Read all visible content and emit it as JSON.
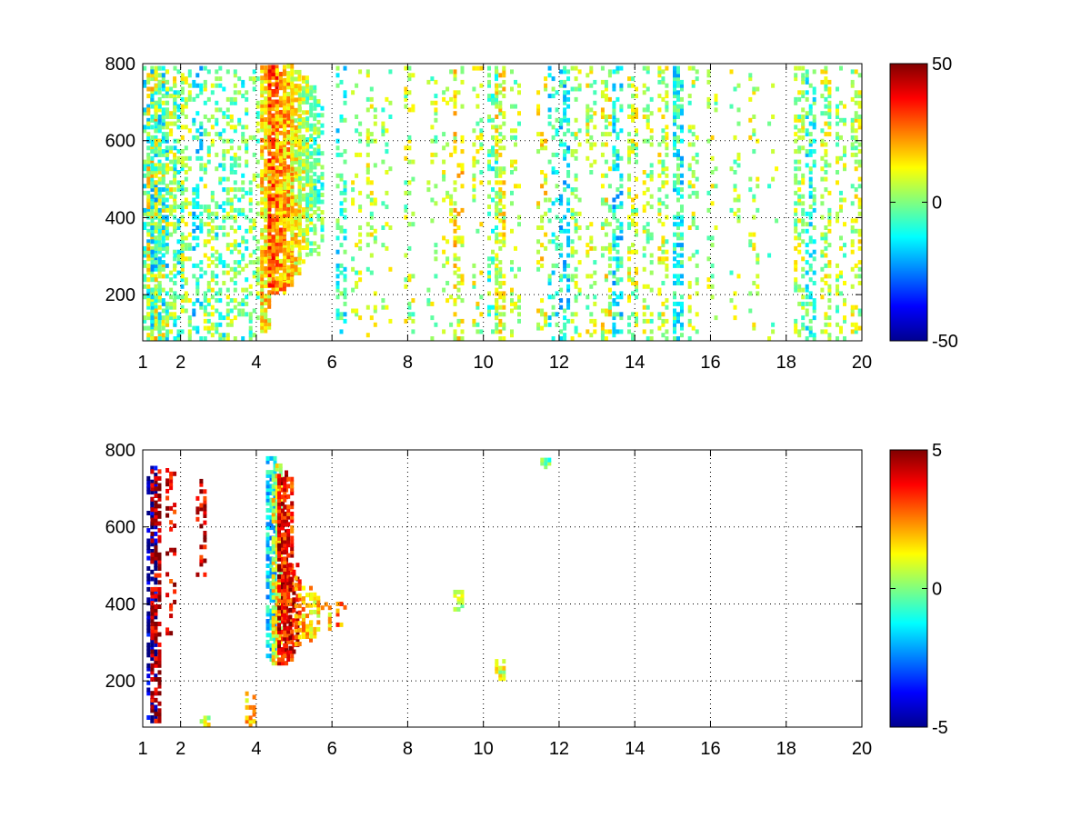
{
  "chart_data": [
    {
      "type": "heatmap",
      "title": "",
      "xlabel": "",
      "ylabel": "",
      "xlim": [
        1,
        20
      ],
      "ylim": [
        80,
        800
      ],
      "x_ticks": [
        1,
        2,
        4,
        6,
        8,
        10,
        12,
        14,
        16,
        18,
        20
      ],
      "y_ticks": [
        200,
        400,
        600,
        800
      ],
      "grid": true,
      "colormap": "jet",
      "colorbar": {
        "min": -50,
        "max": 50,
        "ticks": [
          -50,
          0,
          50
        ]
      },
      "columns": [
        {
          "x": 1.1,
          "ymin": 80,
          "ymax": 800,
          "level": -8,
          "density": 0.45
        },
        {
          "x": 1.2,
          "ymin": 80,
          "ymax": 800,
          "level": 12,
          "density": 0.45
        },
        {
          "x": 1.3,
          "ymin": 80,
          "ymax": 800,
          "level": -12,
          "density": 0.45
        },
        {
          "x": 1.4,
          "ymin": 80,
          "ymax": 800,
          "level": 8,
          "density": 0.4
        },
        {
          "x": 1.5,
          "ymin": 80,
          "ymax": 800,
          "level": -10,
          "density": 0.4
        },
        {
          "x": 1.7,
          "ymin": 80,
          "ymax": 800,
          "level": 6,
          "density": 0.4
        },
        {
          "x": 1.9,
          "ymin": 80,
          "ymax": 800,
          "level": -6,
          "density": 0.35
        },
        {
          "x": 2.1,
          "ymin": 80,
          "ymax": 800,
          "level": 4,
          "density": 0.35
        },
        {
          "x": 2.4,
          "ymin": 80,
          "ymax": 800,
          "level": -12,
          "density": 0.35
        },
        {
          "x": 2.7,
          "ymin": 80,
          "ymax": 800,
          "level": 3,
          "density": 0.3
        },
        {
          "x": 3.0,
          "ymin": 80,
          "ymax": 800,
          "level": -6,
          "density": 0.3
        },
        {
          "x": 3.3,
          "ymin": 80,
          "ymax": 800,
          "level": 2,
          "density": 0.3
        },
        {
          "x": 3.6,
          "ymin": 80,
          "ymax": 800,
          "level": -4,
          "density": 0.25
        },
        {
          "x": 3.9,
          "ymin": 80,
          "ymax": 800,
          "level": 1,
          "density": 0.25
        },
        {
          "x": 4.2,
          "ymin": 100,
          "ymax": 800,
          "level": 15,
          "density": 0.8
        },
        {
          "x": 4.4,
          "ymin": 200,
          "ymax": 800,
          "level": 28,
          "density": 0.85
        },
        {
          "x": 4.6,
          "ymin": 200,
          "ymax": 800,
          "level": 22,
          "density": 0.85
        },
        {
          "x": 4.8,
          "ymin": 220,
          "ymax": 800,
          "level": 18,
          "density": 0.8
        },
        {
          "x": 5.0,
          "ymin": 250,
          "ymax": 780,
          "level": 12,
          "density": 0.7
        },
        {
          "x": 5.2,
          "ymin": 280,
          "ymax": 760,
          "level": 8,
          "density": 0.6
        },
        {
          "x": 5.4,
          "ymin": 300,
          "ymax": 740,
          "level": 2,
          "density": 0.55
        },
        {
          "x": 5.6,
          "ymin": 300,
          "ymax": 700,
          "level": -4,
          "density": 0.45
        },
        {
          "x": 6.2,
          "ymin": 80,
          "ymax": 800,
          "level": -8,
          "density": 0.3
        },
        {
          "x": 6.6,
          "ymin": 80,
          "ymax": 800,
          "level": 4,
          "density": 0.2
        },
        {
          "x": 7.0,
          "ymin": 80,
          "ymax": 800,
          "level": 6,
          "density": 0.2
        },
        {
          "x": 7.4,
          "ymin": 80,
          "ymax": 800,
          "level": 3,
          "density": 0.15
        },
        {
          "x": 8.0,
          "ymin": 80,
          "ymax": 800,
          "level": 5,
          "density": 0.15
        },
        {
          "x": 8.6,
          "ymin": 80,
          "ymax": 800,
          "level": 4,
          "density": 0.15
        },
        {
          "x": 9.0,
          "ymin": 80,
          "ymax": 800,
          "level": 6,
          "density": 0.15
        },
        {
          "x": 9.3,
          "ymin": 80,
          "ymax": 800,
          "level": 12,
          "density": 0.3
        },
        {
          "x": 9.8,
          "ymin": 80,
          "ymax": 800,
          "level": 6,
          "density": 0.2
        },
        {
          "x": 10.2,
          "ymin": 80,
          "ymax": 800,
          "level": -4,
          "density": 0.3
        },
        {
          "x": 10.4,
          "ymin": 80,
          "ymax": 800,
          "level": 10,
          "density": 0.5
        },
        {
          "x": 10.8,
          "ymin": 80,
          "ymax": 800,
          "level": 4,
          "density": 0.2
        },
        {
          "x": 11.5,
          "ymin": 80,
          "ymax": 800,
          "level": 10,
          "density": 0.2
        },
        {
          "x": 11.8,
          "ymin": 80,
          "ymax": 800,
          "level": -8,
          "density": 0.2
        },
        {
          "x": 12.1,
          "ymin": 80,
          "ymax": 800,
          "level": -12,
          "density": 0.35
        },
        {
          "x": 12.4,
          "ymin": 80,
          "ymax": 800,
          "level": 4,
          "density": 0.3
        },
        {
          "x": 12.8,
          "ymin": 80,
          "ymax": 800,
          "level": 6,
          "density": 0.25
        },
        {
          "x": 13.2,
          "ymin": 80,
          "ymax": 800,
          "level": 8,
          "density": 0.3
        },
        {
          "x": 13.5,
          "ymin": 80,
          "ymax": 800,
          "level": -12,
          "density": 0.45
        },
        {
          "x": 13.9,
          "ymin": 80,
          "ymax": 800,
          "level": 6,
          "density": 0.35
        },
        {
          "x": 14.3,
          "ymin": 80,
          "ymax": 800,
          "level": 4,
          "density": 0.3
        },
        {
          "x": 14.7,
          "ymin": 80,
          "ymax": 800,
          "level": 6,
          "density": 0.3
        },
        {
          "x": 15.1,
          "ymin": 80,
          "ymax": 800,
          "level": -10,
          "density": 0.55
        },
        {
          "x": 15.5,
          "ymin": 80,
          "ymax": 800,
          "level": 4,
          "density": 0.2
        },
        {
          "x": 16.0,
          "ymin": 80,
          "ymax": 800,
          "level": 5,
          "density": 0.15
        },
        {
          "x": 16.6,
          "ymin": 80,
          "ymax": 800,
          "level": 4,
          "density": 0.15
        },
        {
          "x": 17.1,
          "ymin": 80,
          "ymax": 800,
          "level": 6,
          "density": 0.15
        },
        {
          "x": 17.6,
          "ymin": 80,
          "ymax": 800,
          "level": 3,
          "density": 0.1
        },
        {
          "x": 18.3,
          "ymin": 80,
          "ymax": 800,
          "level": 4,
          "density": 0.35
        },
        {
          "x": 18.6,
          "ymin": 80,
          "ymax": 800,
          "level": -8,
          "density": 0.35
        },
        {
          "x": 19.0,
          "ymin": 80,
          "ymax": 800,
          "level": 5,
          "density": 0.3
        },
        {
          "x": 19.4,
          "ymin": 80,
          "ymax": 800,
          "level": 3,
          "density": 0.25
        },
        {
          "x": 19.8,
          "ymin": 80,
          "ymax": 800,
          "level": 6,
          "density": 0.3
        }
      ]
    },
    {
      "type": "heatmap",
      "title": "",
      "xlabel": "",
      "ylabel": "",
      "xlim": [
        1,
        20
      ],
      "ylim": [
        80,
        800
      ],
      "x_ticks": [
        1,
        2,
        4,
        6,
        8,
        10,
        12,
        14,
        16,
        18,
        20
      ],
      "y_ticks": [
        200,
        400,
        600,
        800
      ],
      "grid": true,
      "colormap": "jet",
      "colorbar": {
        "min": -5,
        "max": 5,
        "ticks": [
          -5,
          0,
          5
        ]
      },
      "columns": [
        {
          "x": 1.2,
          "ymin": 90,
          "ymax": 750,
          "level": -4.5,
          "density": 0.6
        },
        {
          "x": 1.3,
          "ymin": 90,
          "ymax": 750,
          "level": 4.5,
          "density": 0.5
        },
        {
          "x": 1.7,
          "ymin": 300,
          "ymax": 750,
          "level": 4,
          "density": 0.3
        },
        {
          "x": 2.5,
          "ymin": 470,
          "ymax": 720,
          "level": 4,
          "density": 0.35
        },
        {
          "x": 2.6,
          "ymin": 80,
          "ymax": 100,
          "level": 1,
          "density": 0.8
        },
        {
          "x": 3.8,
          "ymin": 80,
          "ymax": 170,
          "level": 2,
          "density": 0.5
        },
        {
          "x": 4.35,
          "ymin": 250,
          "ymax": 780,
          "level": -1.5,
          "density": 0.7
        },
        {
          "x": 4.5,
          "ymin": 240,
          "ymax": 760,
          "level": 1,
          "density": 0.75
        },
        {
          "x": 4.65,
          "ymin": 240,
          "ymax": 740,
          "level": 4,
          "density": 0.75
        },
        {
          "x": 4.8,
          "ymin": 250,
          "ymax": 720,
          "level": 3.5,
          "density": 0.7
        },
        {
          "x": 4.95,
          "ymin": 270,
          "ymax": 500,
          "level": 4.5,
          "density": 0.6
        },
        {
          "x": 5.1,
          "ymin": 290,
          "ymax": 470,
          "level": 2.5,
          "density": 0.55
        },
        {
          "x": 5.3,
          "ymin": 300,
          "ymax": 450,
          "level": 2,
          "density": 0.5
        },
        {
          "x": 5.5,
          "ymin": 310,
          "ymax": 420,
          "level": 1.5,
          "density": 0.45
        },
        {
          "x": 5.8,
          "ymin": 330,
          "ymax": 400,
          "level": 1.5,
          "density": 0.45
        },
        {
          "x": 6.2,
          "ymin": 340,
          "ymax": 400,
          "level": 2.5,
          "density": 0.45
        },
        {
          "x": 9.3,
          "ymin": 380,
          "ymax": 430,
          "level": 0.8,
          "density": 0.7
        },
        {
          "x": 10.4,
          "ymin": 200,
          "ymax": 250,
          "level": 0.8,
          "density": 0.7
        },
        {
          "x": 11.6,
          "ymin": 750,
          "ymax": 770,
          "level": -0.5,
          "density": 0.8
        }
      ]
    }
  ]
}
